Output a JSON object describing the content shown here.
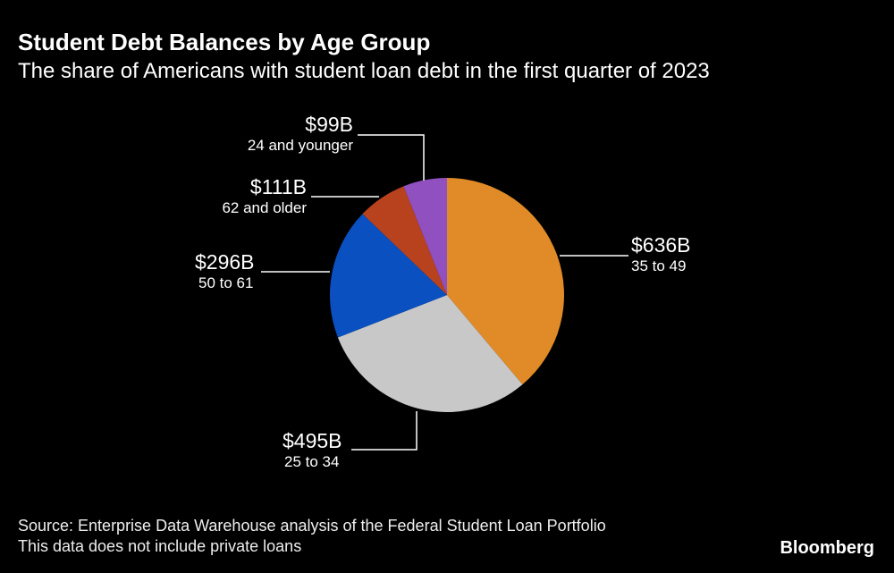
{
  "chart_data": {
    "type": "pie",
    "title": "Student Debt Balances by Age Group",
    "subtitle": "The share of Americans with student loan debt in the first quarter of 2023",
    "unit": "billions USD",
    "slices": [
      {
        "category": "35 to 49",
        "value": 636,
        "label": "$636B",
        "color": "#E08A28"
      },
      {
        "category": "25 to 34",
        "value": 495,
        "label": "$495B",
        "color": "#C8C8C8"
      },
      {
        "category": "50 to 61",
        "value": 296,
        "label": "$296B",
        "color": "#0A50C0"
      },
      {
        "category": "62 and older",
        "value": 111,
        "label": "$111B",
        "color": "#B8421E"
      },
      {
        "category": "24 and younger",
        "value": 99,
        "label": "$99B",
        "color": "#9050C0"
      }
    ]
  },
  "footer": {
    "source": "Source: Enterprise Data Warehouse analysis of the Federal Student Loan Portfolio",
    "note": "This data does not include private loans",
    "brand": "Bloomberg"
  }
}
